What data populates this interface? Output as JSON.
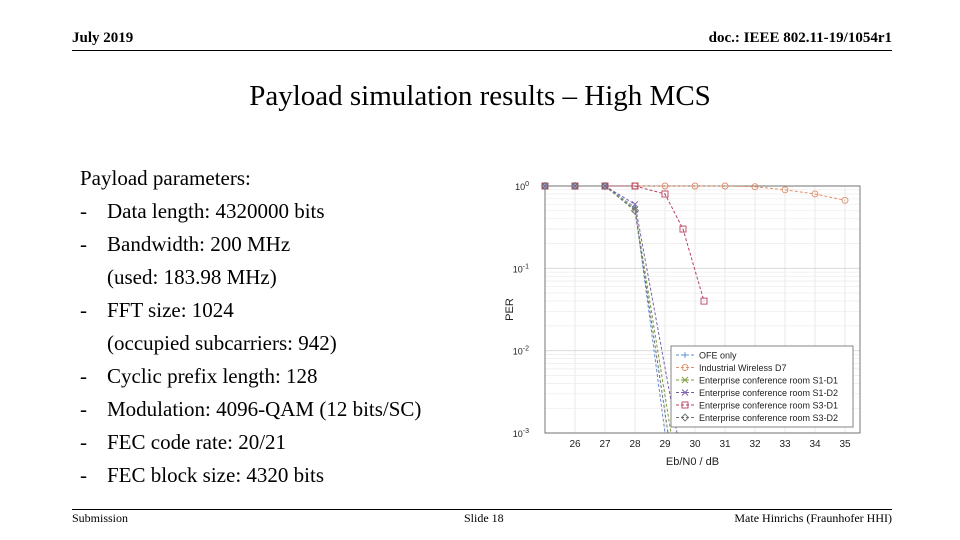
{
  "header": {
    "date": "July 2019",
    "doc": "doc.: IEEE 802.11-19/1054r1"
  },
  "slide": {
    "title": "Payload simulation results – High MCS",
    "params_heading": "Payload parameters:",
    "params": [
      {
        "text": "Data length: 4320000 bits",
        "sub": ""
      },
      {
        "text": "Bandwidth: 200 MHz",
        "sub": "(used: 183.98 MHz)"
      },
      {
        "text": "FFT size: 1024",
        "sub": "(occupied subcarriers: 942)"
      },
      {
        "text": "Cyclic prefix length: 128",
        "sub": ""
      },
      {
        "text": "Modulation: 4096-QAM (12 bits/SC)",
        "sub": ""
      },
      {
        "text": "FEC code rate: 20/21",
        "sub": ""
      },
      {
        "text": "FEC block size: 4320 bits",
        "sub": ""
      }
    ]
  },
  "footer": {
    "left": "Submission",
    "mid": "Slide 18",
    "right": "Mate Hinrichs (Fraunhofer HHI)"
  },
  "chart_data": {
    "type": "line",
    "xlabel": "Eb/N0 / dB",
    "ylabel": "PER",
    "xlim": [
      25,
      35.5
    ],
    "ylim": [
      0.001,
      1
    ],
    "yscale": "log",
    "xticks": [
      26,
      27,
      28,
      29,
      30,
      31,
      32,
      33,
      34,
      35
    ],
    "yticks": [
      {
        "value": 1,
        "mant": "10",
        "exp": "0"
      },
      {
        "value": 0.1,
        "mant": "10",
        "exp": "-1"
      },
      {
        "value": 0.01,
        "mant": "10",
        "exp": "-2"
      },
      {
        "value": 0.001,
        "mant": "10",
        "exp": "-3"
      }
    ],
    "grid": true,
    "legend_position": "bottom-right",
    "series": [
      {
        "name": "OFE only",
        "color": "#5b8fd6",
        "marker": "plus",
        "x": [
          25,
          26,
          27,
          28,
          29
        ],
        "y": [
          1,
          1,
          1,
          0.55,
          0.001
        ]
      },
      {
        "name": "Industrial Wireless D7",
        "color": "#e0906a",
        "marker": "circle",
        "x": [
          25,
          26,
          27,
          28,
          29,
          30,
          31,
          32,
          33,
          34,
          35
        ],
        "y": [
          1,
          1,
          1,
          1,
          1,
          1,
          1,
          0.98,
          0.9,
          0.8,
          0.67
        ]
      },
      {
        "name": "Enterprise conference room S1-D1",
        "color": "#7a9a3a",
        "marker": "x",
        "x": [
          25,
          26,
          27,
          28,
          29.2
        ],
        "y": [
          1,
          1,
          1,
          0.52,
          0.001
        ]
      },
      {
        "name": "Enterprise conference room S1-D2",
        "color": "#7a5fa8",
        "marker": "x",
        "x": [
          25,
          26,
          27,
          28,
          29.4
        ],
        "y": [
          1,
          1,
          1,
          0.6,
          0.001
        ]
      },
      {
        "name": "Enterprise conference room S3-D1",
        "color": "#b84060",
        "marker": "square",
        "x": [
          25,
          26,
          27,
          28,
          29,
          29.6,
          30.3
        ],
        "y": [
          1,
          1,
          1,
          1,
          0.8,
          0.3,
          0.04
        ]
      },
      {
        "name": "Enterprise conference room S3-D2",
        "color": "#707070",
        "marker": "diamond",
        "x": [
          25,
          26,
          27,
          28,
          29.1
        ],
        "y": [
          1,
          1,
          1,
          0.5,
          0.001
        ]
      }
    ]
  }
}
